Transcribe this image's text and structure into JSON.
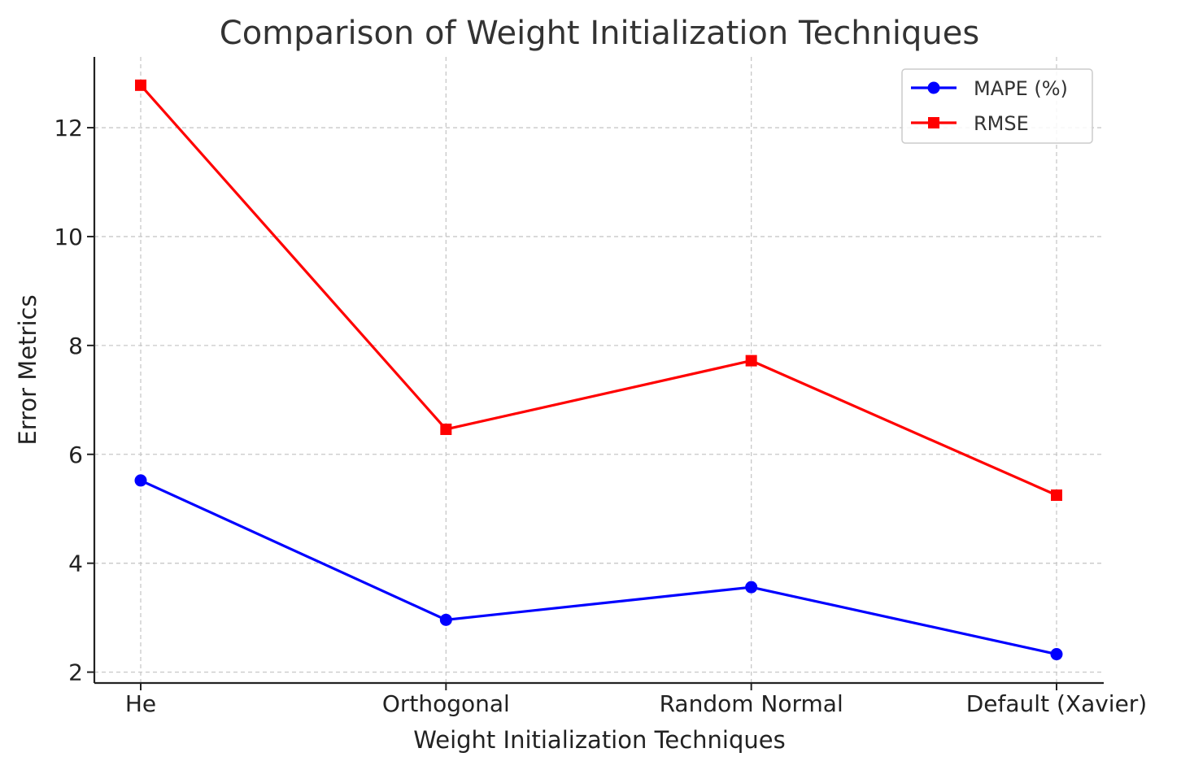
{
  "chart_data": {
    "type": "line",
    "title": "Comparison of Weight Initialization Techniques",
    "xlabel": "Weight Initialization Techniques",
    "ylabel": "Error Metrics",
    "categories": [
      "He",
      "Orthogonal",
      "Random Normal",
      "Default (Xavier)"
    ],
    "series": [
      {
        "name": "MAPE (%)",
        "values": [
          5.52,
          2.96,
          3.56,
          2.33
        ],
        "color": "#0000ff",
        "marker": "circle"
      },
      {
        "name": "RMSE",
        "values": [
          12.78,
          6.46,
          7.72,
          5.25
        ],
        "color": "#ff0000",
        "marker": "square"
      }
    ],
    "ylim": [
      1.8,
      13.3
    ],
    "yticks": [
      2,
      4,
      6,
      8,
      10,
      12
    ],
    "grid": true,
    "legend_position": "top-right"
  }
}
